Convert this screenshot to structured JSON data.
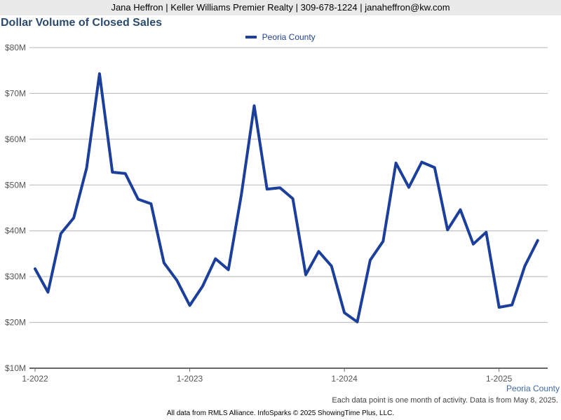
{
  "header": {
    "contact_line": "Jana Heffron | Keller Williams Premier Realty | 309-678-1224 | janaheffron@kw.com"
  },
  "chart_data": {
    "type": "line",
    "title": "Dollar Volume of Closed Sales",
    "xlabel": "",
    "ylabel": "",
    "ylim": [
      10,
      80
    ],
    "y_unit": "Million USD",
    "y_ticks": [
      10,
      20,
      30,
      40,
      50,
      60,
      70,
      80
    ],
    "y_tick_labels": [
      "$10M",
      "$20M",
      "$30M",
      "$40M",
      "$50M",
      "$60M",
      "$70M",
      "$80M"
    ],
    "x_ticks": [
      "1-2022",
      "1-2023",
      "1-2024",
      "1-2025"
    ],
    "grid": true,
    "legend_placement": "top-center",
    "series": [
      {
        "name": "Peoria County",
        "color": "#1b3f9a",
        "x": [
          "2022-01",
          "2022-02",
          "2022-03",
          "2022-04",
          "2022-05",
          "2022-06",
          "2022-07",
          "2022-08",
          "2022-09",
          "2022-10",
          "2022-11",
          "2022-12",
          "2023-01",
          "2023-02",
          "2023-03",
          "2023-04",
          "2023-05",
          "2023-06",
          "2023-07",
          "2023-08",
          "2023-09",
          "2023-10",
          "2023-11",
          "2023-12",
          "2024-01",
          "2024-02",
          "2024-03",
          "2024-04",
          "2024-05",
          "2024-06",
          "2024-07",
          "2024-08",
          "2024-09",
          "2024-10",
          "2024-11",
          "2024-12",
          "2025-01",
          "2025-02",
          "2025-03",
          "2025-04"
        ],
        "values": [
          31.7,
          26.6,
          39.4,
          42.8,
          53.7,
          74.3,
          52.8,
          52.5,
          46.9,
          45.9,
          33.0,
          29.2,
          23.7,
          27.9,
          33.9,
          31.5,
          47.8,
          67.3,
          49.1,
          49.4,
          47.0,
          30.4,
          35.5,
          32.3,
          22.1,
          20.1,
          33.6,
          37.7,
          54.8,
          49.5,
          55.0,
          53.8,
          40.2,
          44.6,
          37.1,
          39.7,
          23.3,
          23.8,
          32.3,
          37.9
        ]
      }
    ]
  },
  "annotations": {
    "series_end_label": "Peoria County",
    "note": "Each data point is one month of activity. Data is from May 8, 2025.",
    "footer": "All data from RMLS Alliance. InfoSparks © 2025 ShowingTime Plus, LLC."
  }
}
